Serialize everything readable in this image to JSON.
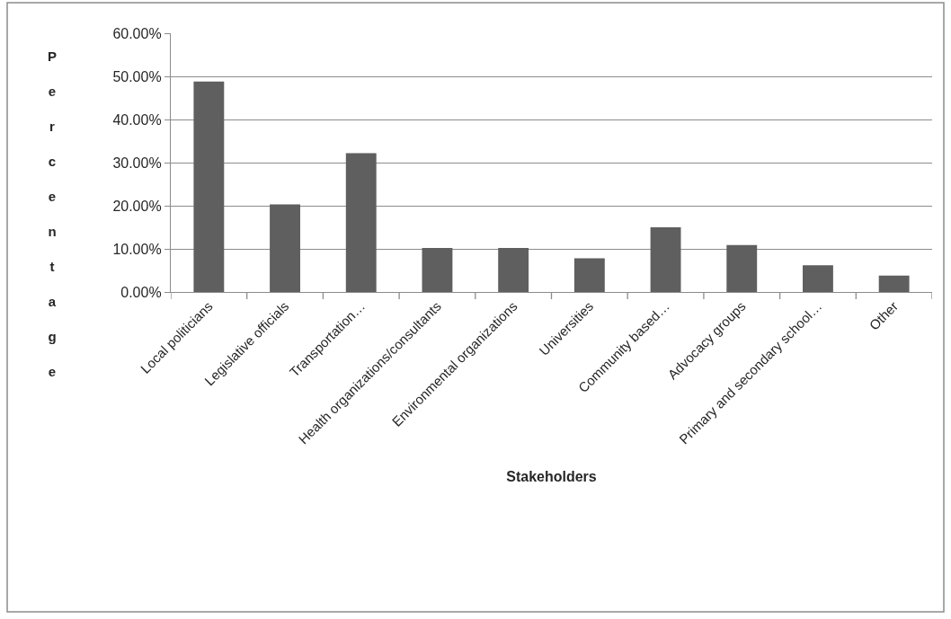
{
  "chart_data": {
    "type": "bar",
    "xlabel": "Stakeholders",
    "ylabel": "Percentage",
    "categories": [
      "Local politicians",
      "Legislative officials",
      "Transportation…",
      "Health organizations/consultants",
      "Environmental organizations",
      "Universities",
      "Community based…",
      "Advocacy groups",
      "Primary and secondary school…",
      "Other"
    ],
    "values": [
      48.8,
      20.3,
      32.2,
      10.2,
      10.2,
      7.8,
      15.0,
      10.9,
      6.2,
      3.8
    ],
    "color": "#5f5f5f",
    "ylim": [
      0,
      60
    ],
    "yticks": [
      {
        "value": 0,
        "label": "0.00%"
      },
      {
        "value": 10,
        "label": "10.00%"
      },
      {
        "value": 20,
        "label": "20.00%"
      },
      {
        "value": 30,
        "label": "30.00%"
      },
      {
        "value": 40,
        "label": "40.00%"
      },
      {
        "value": 50,
        "label": "50.00%"
      },
      {
        "value": 60,
        "label": "60.00%"
      }
    ],
    "grid": "y"
  }
}
